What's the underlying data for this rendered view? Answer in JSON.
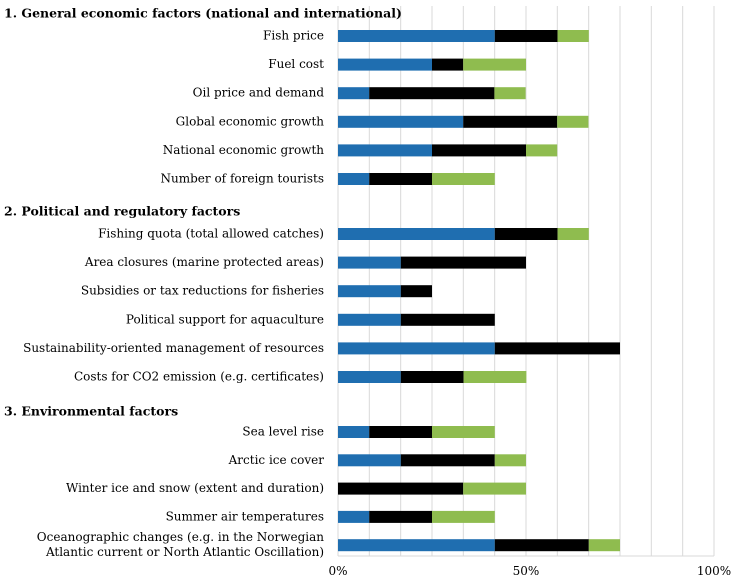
{
  "chart_data": {
    "type": "bar",
    "orientation": "horizontal",
    "stacked": true,
    "title": "",
    "xlabel": "",
    "ylabel": "",
    "xlim": [
      0,
      100
    ],
    "xticks": [
      "0%",
      "50%",
      "100%"
    ],
    "grid": true,
    "legend": "none",
    "colors": [
      "#1f6eb0",
      "#000000",
      "#8fbc4f"
    ],
    "series_names": [
      "segment-1",
      "segment-2",
      "segment-3"
    ],
    "sections": [
      {
        "header": "1. General economic factors (national and international)",
        "items": [
          {
            "label": "Fish price",
            "values": [
              41.7,
              16.7,
              8.3
            ]
          },
          {
            "label": "Fuel cost",
            "values": [
              25.0,
              8.3,
              16.7
            ]
          },
          {
            "label": "Oil price and demand",
            "values": [
              8.3,
              33.3,
              8.3
            ]
          },
          {
            "label": "Global economic growth",
            "values": [
              33.3,
              25.0,
              8.3
            ]
          },
          {
            "label": "National economic growth",
            "values": [
              25.0,
              25.0,
              8.3
            ]
          },
          {
            "label": "Number of foreign tourists",
            "values": [
              8.3,
              16.7,
              16.7
            ]
          }
        ]
      },
      {
        "header": "2. Political and regulatory factors",
        "items": [
          {
            "label": "Fishing quota (total allowed catches)",
            "values": [
              41.7,
              16.7,
              8.3
            ]
          },
          {
            "label": "Area closures (marine protected areas)",
            "values": [
              16.7,
              33.3,
              0
            ]
          },
          {
            "label": "Subsidies or tax reductions for fisheries",
            "values": [
              16.7,
              8.3,
              0
            ]
          },
          {
            "label": "Political support for aquaculture",
            "values": [
              16.7,
              25.0,
              0
            ]
          },
          {
            "label": "Sustainability-oriented management of resources",
            "values": [
              41.7,
              33.3,
              0
            ]
          },
          {
            "label": "Costs for CO2 emission (e.g. certificates)",
            "values": [
              16.7,
              16.7,
              16.7
            ]
          }
        ]
      },
      {
        "header": "3. Environmental factors",
        "items": [
          {
            "label": "Sea level rise",
            "values": [
              8.3,
              16.7,
              16.7
            ]
          },
          {
            "label": "Arctic ice cover",
            "values": [
              16.7,
              25.0,
              8.3
            ]
          },
          {
            "label": "Winter ice and snow (extent and duration)",
            "values": [
              0,
              33.3,
              16.7
            ]
          },
          {
            "label": "Summer air temperatures",
            "values": [
              8.3,
              16.7,
              16.7
            ]
          },
          {
            "label": "Oceanographic changes (e.g. in the Norwegian Atlantic current or North Atlantic Oscillation)",
            "label_lines": [
              "Oceanographic changes (e.g. in the Norwegian",
              "Atlantic current or North Atlantic Oscillation)"
            ],
            "values": [
              41.7,
              25.0,
              8.3
            ]
          }
        ]
      }
    ]
  }
}
